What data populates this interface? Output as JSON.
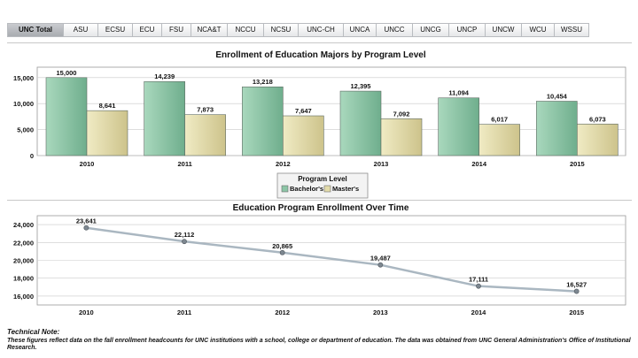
{
  "tabs": [
    {
      "label": "UNC Total",
      "active": true
    },
    {
      "label": "ASU"
    },
    {
      "label": "ECSU"
    },
    {
      "label": "ECU"
    },
    {
      "label": "FSU"
    },
    {
      "label": "NCA&T"
    },
    {
      "label": "NCCU"
    },
    {
      "label": "NCSU"
    },
    {
      "label": "UNC-CH"
    },
    {
      "label": "UNCA"
    },
    {
      "label": "UNCC"
    },
    {
      "label": "UNCG"
    },
    {
      "label": "UNCP"
    },
    {
      "label": "UNCW"
    },
    {
      "label": "WCU"
    },
    {
      "label": "WSSU"
    }
  ],
  "chart_data": [
    {
      "type": "bar",
      "title": "Enrollment of Education Majors by Program Level",
      "categories": [
        "2010",
        "2011",
        "2012",
        "2013",
        "2014",
        "2015"
      ],
      "series": [
        {
          "name": "Bachelor's",
          "values": [
            15000,
            14239,
            13218,
            12395,
            11094,
            10454
          ],
          "labels": [
            "15,000",
            "14,239",
            "13,218",
            "12,395",
            "11,094",
            "10,454"
          ]
        },
        {
          "name": "Master's",
          "values": [
            8641,
            7873,
            7647,
            7092,
            6017,
            6073
          ],
          "labels": [
            "8,641",
            "7,873",
            "7,647",
            "7,092",
            "6,017",
            "6,073"
          ]
        }
      ],
      "ylim": [
        0,
        17000
      ],
      "yticks": [
        0,
        5000,
        10000,
        15000
      ],
      "ytick_labels": [
        "0",
        "5,000",
        "10,000",
        "15,000"
      ],
      "grid": true,
      "legend_title": "Program Level",
      "legend_position": "bottom-center",
      "colors": {
        "Bachelor's": "#8cc5a6",
        "Master's": "#e3dcab"
      }
    },
    {
      "type": "line",
      "title": "Education Program Enrollment Over Time",
      "x": [
        "2010",
        "2011",
        "2012",
        "2013",
        "2014",
        "2015"
      ],
      "series": [
        {
          "values": [
            23641,
            22112,
            20865,
            19487,
            17111,
            16527
          ],
          "labels": [
            "23,641",
            "22,112",
            "20,865",
            "19,487",
            "17,111",
            "16,527"
          ]
        }
      ],
      "ylim": [
        15000,
        25000
      ],
      "yticks": [
        16000,
        18000,
        20000,
        22000,
        24000
      ],
      "ytick_labels": [
        "16,000",
        "18,000",
        "20,000",
        "22,000",
        "24,000"
      ],
      "grid": true,
      "colors": {
        "line": "#aab7c1",
        "marker": "#7d8790"
      }
    }
  ],
  "note": {
    "title": "Technical Note:",
    "body": "These figures reflect data on the fall enrollment headcounts for UNC institutions with a school, college or department of education. The data was obtained from UNC General Administration's Office of Institutional Research."
  }
}
